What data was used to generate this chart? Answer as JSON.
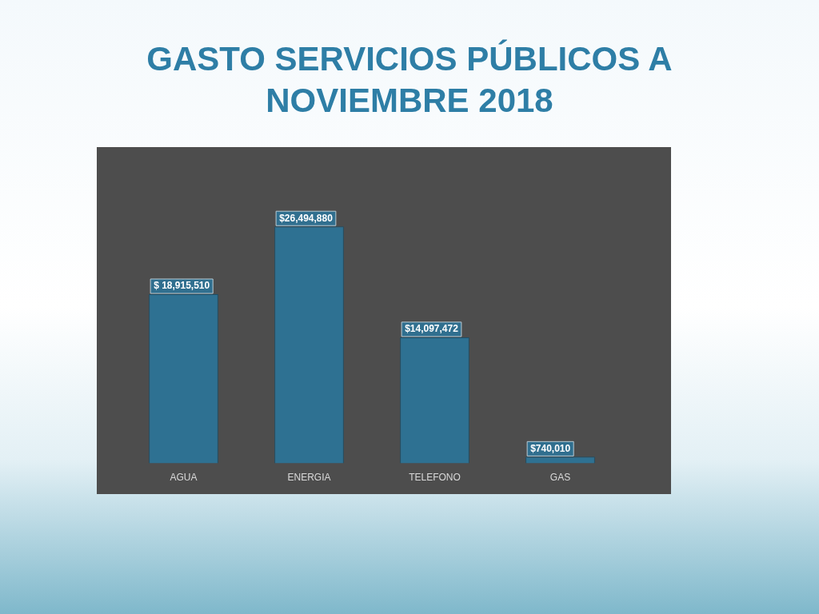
{
  "chart_data": {
    "type": "bar",
    "title": "GASTO SERVICIOS PÚBLICOS A NOVIEMBRE 2018",
    "categories": [
      "AGUA",
      "ENERGIA",
      "TELEFONO",
      "GAS"
    ],
    "values": [
      18915510,
      26494880,
      14097472,
      740010
    ],
    "value_labels": [
      "$ 18,915,510",
      "$26,494,880",
      "$14,097,472",
      "$740,010"
    ],
    "color": "#2e7192"
  }
}
